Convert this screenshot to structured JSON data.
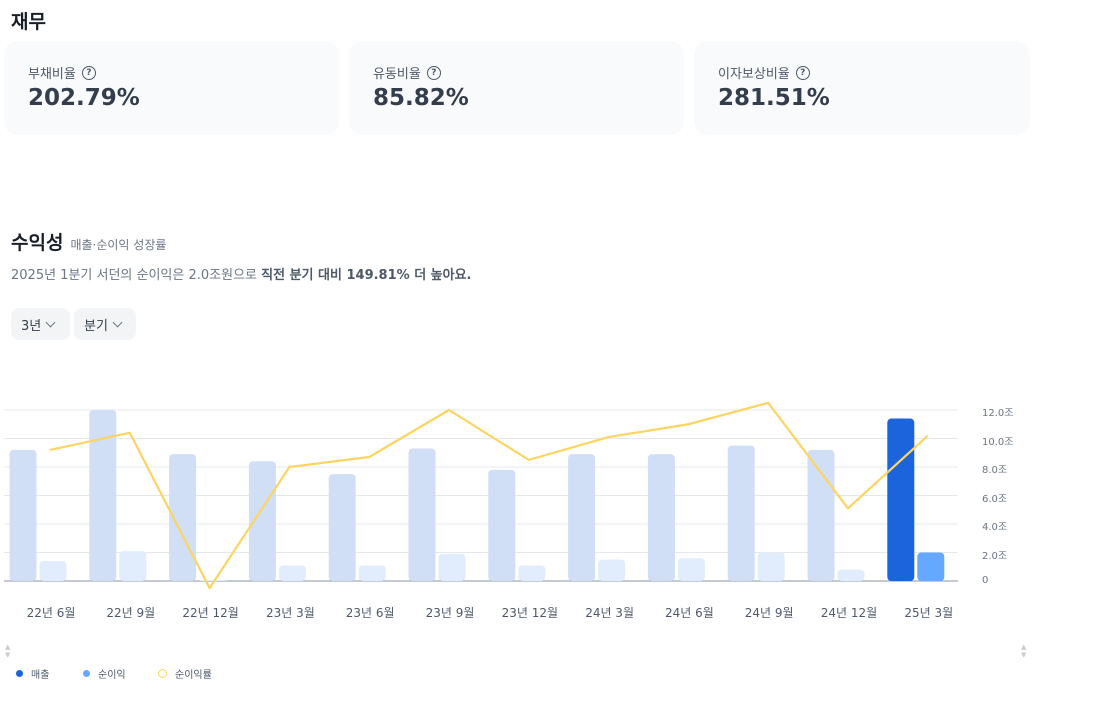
{
  "finance": {
    "title": "재무",
    "cards": [
      {
        "label": "부채비율",
        "value": "202.79%"
      },
      {
        "label": "유동비율",
        "value": "85.82%"
      },
      {
        "label": "이자보상비율",
        "value": "281.51%"
      }
    ]
  },
  "profitability": {
    "title": "수익성",
    "subtitle": "매출·순이익 성장률",
    "desc_prefix": "2025년 1분기 서던의 순이익은 2.0조원으로 ",
    "desc_bold": "직전 분기 대비 149.81% 더 높아요.",
    "filters": [
      {
        "label": "3년"
      },
      {
        "label": "분기"
      }
    ]
  },
  "chart_data": {
    "type": "bar",
    "categories": [
      "22년 6월",
      "22년 9월",
      "22년 12월",
      "23년 3월",
      "23년 6월",
      "23년 9월",
      "23년 12월",
      "24년 3월",
      "24년 6월",
      "24년 9월",
      "24년 12월",
      "25년 3월"
    ],
    "series": [
      {
        "name": "매출",
        "values": [
          9.2,
          12.0,
          8.9,
          8.4,
          7.5,
          9.3,
          7.8,
          8.9,
          8.9,
          9.5,
          9.2,
          11.4
        ]
      },
      {
        "name": "순이익",
        "values": [
          1.4,
          2.1,
          0.0,
          1.1,
          1.1,
          1.9,
          1.1,
          1.5,
          1.6,
          2.0,
          0.8,
          2.0
        ]
      },
      {
        "name": "순이익률",
        "values": [
          9.2,
          10.4,
          -0.5,
          8.0,
          8.7,
          12.0,
          8.5,
          10.1,
          11.0,
          12.5,
          5.1,
          10.2
        ]
      }
    ],
    "y_ticks": [
      "12.0조",
      "10.0조",
      "8.0조",
      "6.0조",
      "4.0조",
      "2.0조",
      "0"
    ],
    "ylim": [
      0,
      12
    ],
    "highlight_index": 11,
    "colors": {
      "revenue": "#d0dff6",
      "net": "#e1edfd",
      "revenue_active": "#1c64db",
      "net_active": "#64a8ff",
      "margin": "#fcd462",
      "grid": "#e5e8eb",
      "baseline": "#8b95a1"
    },
    "legend": [
      {
        "label": "매출",
        "color": "#1c64db",
        "style": "dot"
      },
      {
        "label": "순이익",
        "color": "#64a8ff",
        "style": "dot"
      },
      {
        "label": "순이익률",
        "color": "#fcd462",
        "style": "ring"
      }
    ]
  }
}
